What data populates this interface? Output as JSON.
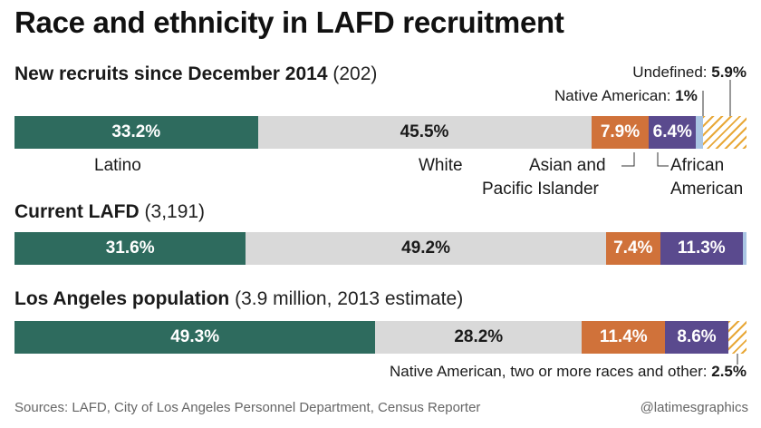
{
  "title": "Race and ethnicity in LAFD recruitment",
  "chart_data": [
    {
      "type": "bar",
      "stacked": true,
      "orientation": "horizontal",
      "name": "New recruits since December 2014",
      "count": "(202)",
      "segments": [
        {
          "category": "Latino",
          "value": 33.2,
          "label": "33.2%",
          "color": "#2e6b5e"
        },
        {
          "category": "White",
          "value": 45.5,
          "label": "45.5%",
          "color": "#d9d9d9"
        },
        {
          "category": "Asian and Pacific Islander",
          "value": 7.9,
          "label": "7.9%",
          "color": "#d0723a"
        },
        {
          "category": "African American",
          "value": 6.4,
          "label": "6.4%",
          "color": "#5a4a8e"
        },
        {
          "category": "Native American",
          "value": 1.0,
          "label": "1%",
          "color": "#a9c5e3"
        },
        {
          "category": "Undefined",
          "value": 5.9,
          "label": "5.9%",
          "color": "hatch"
        }
      ]
    },
    {
      "type": "bar",
      "stacked": true,
      "orientation": "horizontal",
      "name": "Current LAFD",
      "count": "(3,191)",
      "segments": [
        {
          "category": "Latino",
          "value": 31.6,
          "label": "31.6%",
          "color": "#2e6b5e"
        },
        {
          "category": "White",
          "value": 49.2,
          "label": "49.2%",
          "color": "#d9d9d9"
        },
        {
          "category": "Asian and Pacific Islander",
          "value": 7.4,
          "label": "7.4%",
          "color": "#d0723a"
        },
        {
          "category": "African American",
          "value": 11.3,
          "label": "11.3%",
          "color": "#5a4a8e"
        },
        {
          "category": "Native American",
          "value": 0.5,
          "label": "",
          "color": "#a9c5e3"
        }
      ]
    },
    {
      "type": "bar",
      "stacked": true,
      "orientation": "horizontal",
      "name": "Los Angeles population",
      "count": "(3.9 million, 2013 estimate)",
      "segments": [
        {
          "category": "Latino",
          "value": 49.3,
          "label": "49.3%",
          "color": "#2e6b5e"
        },
        {
          "category": "White",
          "value": 28.2,
          "label": "28.2%",
          "color": "#d9d9d9"
        },
        {
          "category": "Asian and Pacific Islander",
          "value": 11.4,
          "label": "11.4%",
          "color": "#d0723a"
        },
        {
          "category": "African American",
          "value": 8.6,
          "label": "8.6%",
          "color": "#5a4a8e"
        },
        {
          "category": "Native American, two or more races and other",
          "value": 2.5,
          "label": "2.5%",
          "color": "hatch"
        }
      ]
    }
  ],
  "categories": {
    "latino": "Latino",
    "white": "White",
    "asian_line1": "Asian and",
    "asian_line2": "Pacific Islander",
    "african_line1": "African",
    "african_line2": "American"
  },
  "notes": {
    "undefined_text": "Undefined: ",
    "undefined_value": "5.9%",
    "native_text": "Native American: ",
    "native_value": "1%",
    "other_text": "Native American, two or more races and other: ",
    "other_value": "2.5%"
  },
  "source": "Sources: LAFD, City of Los Angeles Personnel Department, Census Reporter",
  "credit": "@latimesgraphics"
}
